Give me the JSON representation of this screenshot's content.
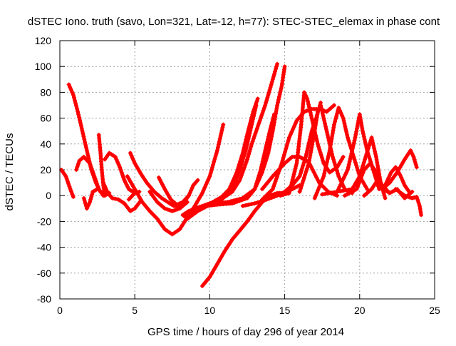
{
  "chart_data": {
    "type": "scatter",
    "title": "dSTEC Iono. truth (savo, Lon=321, Lat=-12, h=77): STEC-STEC_elemax in phase cont",
    "xlabel": "GPS time / hours of day 296 of year 2014",
    "ylabel": "dSTEC  / TECUs",
    "xlim": [
      0,
      25
    ],
    "ylim": [
      -80,
      120
    ],
    "xticks": [
      "0",
      "5",
      "10",
      "15",
      "20",
      "25"
    ],
    "yticks": [
      "-80",
      "-60",
      "-40",
      "-20",
      "0",
      "20",
      "40",
      "60",
      "80",
      "100",
      "120"
    ],
    "grid": true,
    "marker": "+",
    "series_color": "#ff0000",
    "arcs": [
      {
        "points": [
          [
            0.1,
            20
          ],
          [
            0.4,
            15
          ],
          [
            0.7,
            5
          ],
          [
            0.9,
            -1
          ]
        ]
      },
      {
        "points": [
          [
            0.6,
            86
          ],
          [
            0.9,
            78
          ],
          [
            1.2,
            65
          ],
          [
            1.5,
            50
          ],
          [
            1.8,
            35
          ],
          [
            2.1,
            20
          ],
          [
            2.4,
            10
          ],
          [
            2.7,
            3
          ],
          [
            3.0,
            0
          ],
          [
            3.3,
            2
          ]
        ]
      },
      {
        "points": [
          [
            1.1,
            20
          ],
          [
            1.3,
            27
          ],
          [
            1.6,
            30
          ],
          [
            2.0,
            25
          ],
          [
            2.3,
            15
          ],
          [
            2.6,
            5
          ],
          [
            2.9,
            0
          ],
          [
            3.2,
            2
          ]
        ]
      },
      {
        "points": [
          [
            1.6,
            -2
          ],
          [
            1.8,
            -10
          ],
          [
            2.0,
            -5
          ],
          [
            2.2,
            3
          ],
          [
            2.5,
            5
          ]
        ]
      },
      {
        "points": [
          [
            2.6,
            47
          ],
          [
            2.7,
            35
          ],
          [
            2.8,
            20
          ],
          [
            2.9,
            8
          ],
          [
            3.0,
            0
          ]
        ]
      },
      {
        "points": [
          [
            3.0,
            28
          ],
          [
            3.3,
            33
          ],
          [
            3.7,
            30
          ],
          [
            4.0,
            22
          ],
          [
            4.3,
            12
          ],
          [
            4.6,
            5
          ],
          [
            5.0,
            2
          ]
        ]
      },
      {
        "points": [
          [
            2.9,
            10
          ],
          [
            3.2,
            2
          ],
          [
            3.5,
            -2
          ],
          [
            3.9,
            -3
          ],
          [
            4.3,
            -6
          ],
          [
            4.7,
            -12
          ],
          [
            5.0,
            -10
          ],
          [
            5.4,
            -4
          ]
        ]
      },
      {
        "points": [
          [
            4.6,
            -3
          ],
          [
            5.0,
            2
          ],
          [
            5.3,
            3
          ]
        ]
      },
      {
        "points": [
          [
            4.7,
            33
          ],
          [
            5.0,
            25
          ],
          [
            5.4,
            17
          ],
          [
            5.8,
            10
          ],
          [
            6.3,
            3
          ],
          [
            6.8,
            -2
          ],
          [
            7.2,
            -5
          ],
          [
            7.6,
            -8
          ],
          [
            7.9,
            -8
          ],
          [
            8.3,
            -5
          ],
          [
            8.6,
            0
          ],
          [
            8.9,
            8
          ],
          [
            9.2,
            12
          ]
        ]
      },
      {
        "points": [
          [
            4.5,
            15
          ],
          [
            5.0,
            5
          ],
          [
            5.5,
            -5
          ],
          [
            6.0,
            -12
          ],
          [
            6.5,
            -18
          ],
          [
            7.0,
            -26
          ],
          [
            7.5,
            -30
          ],
          [
            8.0,
            -26
          ],
          [
            8.5,
            -17
          ],
          [
            9.0,
            -8
          ],
          [
            9.5,
            2
          ],
          [
            10.0,
            15
          ],
          [
            10.5,
            35
          ],
          [
            10.9,
            55
          ]
        ]
      },
      {
        "points": [
          [
            6.6,
            14
          ],
          [
            7.0,
            5
          ],
          [
            7.4,
            -3
          ],
          [
            7.8,
            -7
          ],
          [
            8.2,
            -5
          ],
          [
            8.6,
            0
          ]
        ]
      },
      {
        "points": [
          [
            6.0,
            3
          ],
          [
            6.5,
            -5
          ],
          [
            7.0,
            -10
          ],
          [
            7.5,
            -12
          ],
          [
            8.0,
            -10
          ],
          [
            8.5,
            -5
          ]
        ]
      },
      {
        "points": [
          [
            8.2,
            -15
          ],
          [
            8.6,
            -12
          ],
          [
            9.0,
            -10
          ],
          [
            9.5,
            -8
          ],
          [
            10.0,
            -6
          ],
          [
            10.5,
            -4
          ],
          [
            11.0,
            -1
          ],
          [
            11.5,
            3
          ],
          [
            12.0,
            12
          ],
          [
            12.5,
            28
          ],
          [
            12.8,
            40
          ],
          [
            13.1,
            50
          ],
          [
            13.4,
            60
          ],
          [
            13.7,
            70
          ],
          [
            14.0,
            82
          ],
          [
            14.3,
            94
          ],
          [
            14.5,
            102
          ]
        ]
      },
      {
        "points": [
          [
            8.3,
            -16
          ],
          [
            9.0,
            -12
          ],
          [
            9.6,
            -8
          ],
          [
            10.2,
            -5
          ],
          [
            10.8,
            -1
          ],
          [
            11.3,
            5
          ],
          [
            11.8,
            18
          ],
          [
            12.2,
            33
          ],
          [
            12.6,
            52
          ],
          [
            12.9,
            65
          ],
          [
            13.2,
            75
          ]
        ]
      },
      {
        "points": [
          [
            8.5,
            -18
          ],
          [
            9.2,
            -12
          ],
          [
            10.0,
            -7
          ],
          [
            10.8,
            -3
          ],
          [
            11.5,
            5
          ],
          [
            12.0,
            20
          ],
          [
            12.4,
            35
          ],
          [
            12.8,
            55
          ],
          [
            13.1,
            70
          ]
        ]
      },
      {
        "points": [
          [
            9.8,
            -8
          ],
          [
            10.5,
            -7
          ],
          [
            11.5,
            -6
          ],
          [
            12.5,
            -2
          ],
          [
            13.0,
            5
          ],
          [
            13.4,
            20
          ],
          [
            13.7,
            35
          ],
          [
            14.0,
            50
          ],
          [
            14.3,
            63
          ]
        ]
      },
      {
        "points": [
          [
            10.3,
            -6
          ],
          [
            11.2,
            -5
          ],
          [
            12.2,
            -2
          ],
          [
            13.0,
            5
          ],
          [
            13.5,
            18
          ],
          [
            13.9,
            33
          ],
          [
            14.2,
            50
          ],
          [
            14.5,
            70
          ],
          [
            14.8,
            85
          ],
          [
            15.0,
            100
          ]
        ]
      },
      {
        "points": [
          [
            9.5,
            -70
          ],
          [
            10.0,
            -63
          ],
          [
            10.5,
            -53
          ],
          [
            11.0,
            -43
          ],
          [
            11.5,
            -34
          ],
          [
            12.0,
            -27
          ],
          [
            12.5,
            -20
          ],
          [
            13.0,
            -12
          ],
          [
            13.5,
            -5
          ],
          [
            14.0,
            0
          ],
          [
            14.5,
            2
          ],
          [
            15.0,
            2
          ],
          [
            15.5,
            5
          ],
          [
            16.0,
            8
          ]
        ]
      },
      {
        "points": [
          [
            12.2,
            -8
          ],
          [
            13.0,
            -6
          ],
          [
            13.8,
            -3
          ],
          [
            14.5,
            0
          ],
          [
            15.0,
            3
          ],
          [
            15.5,
            8
          ],
          [
            16.0,
            15
          ],
          [
            16.4,
            30
          ],
          [
            16.8,
            50
          ],
          [
            17.1,
            60
          ],
          [
            17.4,
            72
          ]
        ]
      },
      {
        "points": [
          [
            13.5,
            -3
          ],
          [
            14.2,
            5
          ],
          [
            14.8,
            25
          ],
          [
            15.3,
            45
          ],
          [
            15.8,
            58
          ],
          [
            16.3,
            65
          ],
          [
            16.8,
            67
          ],
          [
            17.3,
            67
          ],
          [
            17.8,
            65
          ],
          [
            18.3,
            70
          ]
        ]
      },
      {
        "points": [
          [
            13.5,
            5
          ],
          [
            14.2,
            15
          ],
          [
            15.0,
            25
          ],
          [
            15.5,
            30
          ],
          [
            16.0,
            30
          ],
          [
            16.6,
            26
          ],
          [
            17.3,
            10
          ],
          [
            17.9,
            3
          ],
          [
            18.5,
            0
          ]
        ]
      },
      {
        "points": [
          [
            14.7,
            0
          ],
          [
            15.3,
            2
          ],
          [
            15.8,
            25
          ],
          [
            16.1,
            55
          ],
          [
            16.3,
            80
          ],
          [
            16.5,
            75
          ],
          [
            16.8,
            60
          ],
          [
            17.2,
            40
          ],
          [
            17.6,
            25
          ],
          [
            18.0,
            18
          ],
          [
            18.5,
            22
          ],
          [
            18.9,
            30
          ]
        ]
      },
      {
        "points": [
          [
            16.0,
            3
          ],
          [
            16.6,
            25
          ],
          [
            17.0,
            50
          ],
          [
            17.2,
            65
          ],
          [
            17.4,
            70
          ],
          [
            17.6,
            60
          ],
          [
            17.9,
            45
          ],
          [
            18.2,
            30
          ],
          [
            18.6,
            15
          ],
          [
            19.0,
            5
          ],
          [
            19.5,
            2
          ]
        ]
      },
      {
        "points": [
          [
            17.0,
            -2
          ],
          [
            17.6,
            15
          ],
          [
            18.0,
            35
          ],
          [
            18.3,
            55
          ],
          [
            18.6,
            68
          ],
          [
            18.9,
            60
          ],
          [
            19.2,
            45
          ],
          [
            19.6,
            30
          ],
          [
            20.0,
            15
          ],
          [
            20.5,
            5
          ]
        ]
      },
      {
        "points": [
          [
            17.5,
            1
          ],
          [
            18.5,
            3
          ],
          [
            19.2,
            20
          ],
          [
            19.7,
            45
          ],
          [
            20.0,
            63
          ],
          [
            20.2,
            50
          ],
          [
            20.5,
            35
          ],
          [
            20.9,
            20
          ],
          [
            21.3,
            5
          ]
        ]
      },
      {
        "points": [
          [
            18.5,
            3
          ],
          [
            19.5,
            5
          ],
          [
            20.0,
            15
          ],
          [
            20.4,
            30
          ],
          [
            20.8,
            45
          ],
          [
            21.1,
            30
          ],
          [
            21.4,
            10
          ],
          [
            21.7,
            -2
          ]
        ]
      },
      {
        "points": [
          [
            19.0,
            0
          ],
          [
            19.8,
            5
          ],
          [
            20.3,
            20
          ],
          [
            20.7,
            25
          ],
          [
            21.0,
            20
          ],
          [
            21.5,
            8
          ],
          [
            22.0,
            2
          ]
        ]
      },
      {
        "points": [
          [
            20.3,
            0
          ],
          [
            20.8,
            5
          ],
          [
            21.2,
            12
          ],
          [
            21.6,
            5
          ],
          [
            22.0,
            2
          ],
          [
            22.5,
            5
          ],
          [
            23.0,
            -2
          ],
          [
            23.5,
            3
          ]
        ]
      },
      {
        "points": [
          [
            21.7,
            8
          ],
          [
            22.1,
            18
          ],
          [
            22.4,
            22
          ],
          [
            22.7,
            16
          ],
          [
            23.0,
            8
          ],
          [
            23.3,
            3
          ]
        ]
      },
      {
        "points": [
          [
            21.5,
            5
          ],
          [
            22.0,
            10
          ],
          [
            22.5,
            18
          ],
          [
            23.0,
            28
          ],
          [
            23.4,
            35
          ],
          [
            23.6,
            30
          ],
          [
            23.8,
            22
          ]
        ]
      },
      {
        "points": [
          [
            22.4,
            5
          ],
          [
            23.0,
            0
          ],
          [
            23.5,
            -2
          ],
          [
            23.8,
            -1
          ],
          [
            24.0,
            -8
          ],
          [
            24.1,
            -15
          ]
        ]
      }
    ]
  }
}
